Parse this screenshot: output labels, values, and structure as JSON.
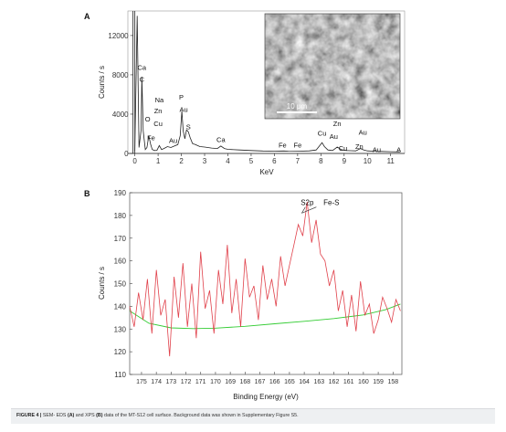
{
  "caption": {
    "fig": "FIGURE 4 |",
    "t1": " SEM- EDS ",
    "b1": "(A)",
    "t2": " and XPS ",
    "b2": "(B)",
    "t3": " data of the MT-S12 cell surface. Background data was shown in Supplementary Figure S5."
  },
  "chart_data": [
    {
      "panel": "A",
      "type": "line",
      "title": "",
      "xlabel": "KeV",
      "ylabel": "Counts / s",
      "xlim": [
        -0.3,
        11.6
      ],
      "ylim": [
        0,
        14500
      ],
      "xticks": [
        0,
        1,
        2,
        3,
        4,
        5,
        6,
        7,
        8,
        9,
        10,
        11
      ],
      "yticks": [
        0,
        4000,
        8000,
        12000
      ],
      "grid": false,
      "series": [
        {
          "x": [
            0.0,
            0.1,
            0.18,
            0.27,
            0.3,
            0.36,
            0.45,
            0.52,
            0.6,
            0.68,
            0.75,
            0.85,
            0.95,
            1.05,
            1.15,
            1.25,
            1.4,
            1.55,
            1.7,
            1.85,
            1.95,
            2.02,
            2.08,
            2.15,
            2.22,
            2.3,
            2.38,
            2.48,
            2.6,
            2.8,
            3.0,
            3.3,
            3.55,
            3.7,
            3.85,
            4.0,
            4.5,
            5.0,
            5.5,
            6.0,
            6.4,
            6.6,
            7.0,
            7.5,
            7.8,
            8.05,
            8.15,
            8.3,
            8.5,
            8.7,
            8.9,
            9.1,
            9.3,
            9.5,
            9.7,
            9.85,
            10.0,
            10.3,
            10.6,
            11.0,
            11.4
          ],
          "y": [
            200,
            14000,
            600,
            2400,
            7800,
            2300,
            400,
            600,
            1800,
            900,
            400,
            300,
            320,
            800,
            400,
            500,
            700,
            600,
            750,
            900,
            1800,
            4300,
            2300,
            1500,
            2400,
            2200,
            1600,
            1000,
            900,
            700,
            650,
            550,
            500,
            750,
            500,
            420,
            350,
            300,
            250,
            230,
            250,
            230,
            220,
            260,
            350,
            1100,
            700,
            350,
            300,
            650,
            350,
            300,
            280,
            260,
            500,
            350,
            260,
            220,
            200,
            180,
            160
          ]
        }
      ],
      "peak_labels": [
        {
          "text": "Ca",
          "x": 0.3,
          "y": 8500
        },
        {
          "text": "C",
          "x": 0.3,
          "y": 7300
        },
        {
          "text": "Na",
          "x": 1.05,
          "y": 5200
        },
        {
          "text": "Zn",
          "x": 1.0,
          "y": 4100
        },
        {
          "text": "O",
          "x": 0.55,
          "y": 3250
        },
        {
          "text": "Cu",
          "x": 1.0,
          "y": 2800
        },
        {
          "text": "Fe",
          "x": 0.7,
          "y": 1350
        },
        {
          "text": "Au",
          "x": 1.65,
          "y": 1050
        },
        {
          "text": "P",
          "x": 2.0,
          "y": 5500
        },
        {
          "text": "Au",
          "x": 2.1,
          "y": 4250
        },
        {
          "text": "S",
          "x": 2.3,
          "y": 2450
        },
        {
          "text": "Ca",
          "x": 3.7,
          "y": 1150
        },
        {
          "text": "Fe",
          "x": 6.35,
          "y": 600
        },
        {
          "text": "Fe",
          "x": 7.0,
          "y": 600
        },
        {
          "text": "Cu",
          "x": 8.05,
          "y": 1800
        },
        {
          "text": "Zn",
          "x": 8.7,
          "y": 2800
        },
        {
          "text": "Au",
          "x": 8.55,
          "y": 1500
        },
        {
          "text": "Cu",
          "x": 8.95,
          "y": 300
        },
        {
          "text": "Au",
          "x": 9.8,
          "y": 1900
        },
        {
          "text": "Zn",
          "x": 9.65,
          "y": 450
        },
        {
          "text": "Au",
          "x": 10.4,
          "y": 150
        },
        {
          "text": "A",
          "x": 11.35,
          "y": 150
        }
      ],
      "inset": {
        "scale_bar_label": "10 μm"
      }
    },
    {
      "panel": "B",
      "type": "line",
      "title": "",
      "xlabel": "Binding Energy (eV)",
      "ylabel": "Counts / s",
      "xlim": [
        175.8,
        157.4
      ],
      "ylim": [
        110,
        190
      ],
      "xticks": [
        175,
        174,
        173,
        172,
        171,
        170,
        169,
        168,
        167,
        166,
        165,
        164,
        163,
        162,
        161,
        160,
        159,
        158
      ],
      "yticks": [
        110,
        120,
        130,
        140,
        150,
        160,
        170,
        180,
        190
      ],
      "grid": false,
      "annotations": [
        {
          "text": "S2p",
          "x": 163.8,
          "y": 184.5
        },
        {
          "text": "Fe-S",
          "x": 162.7,
          "y": 184.5
        }
      ],
      "series": [
        {
          "name": "",
          "color": "#e0404a",
          "x": [
            175.8,
            175.5,
            175.2,
            174.9,
            174.6,
            174.3,
            174.0,
            173.7,
            173.4,
            173.1,
            172.8,
            172.5,
            172.2,
            171.9,
            171.6,
            171.3,
            171.0,
            170.7,
            170.4,
            170.1,
            169.8,
            169.5,
            169.2,
            168.9,
            168.6,
            168.3,
            168.0,
            167.7,
            167.4,
            167.1,
            166.8,
            166.5,
            166.2,
            165.9,
            165.6,
            165.3,
            165.0,
            164.7,
            164.4,
            164.1,
            163.8,
            163.5,
            163.2,
            162.9,
            162.6,
            162.3,
            162.0,
            161.7,
            161.4,
            161.1,
            160.8,
            160.5,
            160.2,
            159.9,
            159.6,
            159.3,
            159.0,
            158.7,
            158.4,
            158.1,
            157.8,
            157.5
          ],
          "y": [
            140,
            131,
            146,
            134,
            152,
            128,
            156,
            136,
            143,
            118,
            153,
            135,
            159,
            131,
            150,
            126,
            164,
            139,
            147,
            128,
            156,
            141,
            167,
            137,
            152,
            131,
            161,
            144,
            149,
            134,
            158,
            143,
            152,
            140,
            162,
            149,
            158,
            167,
            176,
            171,
            186,
            168,
            178,
            163,
            160,
            149,
            156,
            138,
            147,
            131,
            145,
            129,
            151,
            136,
            141,
            128,
            134,
            144,
            139,
            133,
            143,
            138
          ]
        },
        {
          "name": "",
          "color": "#33cc33",
          "x": [
            175.8,
            174.5,
            173,
            171.5,
            170,
            168,
            166,
            164,
            162,
            160,
            158.5,
            157.5
          ],
          "y": [
            138,
            132.5,
            130.5,
            130.2,
            130.4,
            131.2,
            132.3,
            133.4,
            134.6,
            136.2,
            138.5,
            141
          ]
        }
      ]
    }
  ]
}
